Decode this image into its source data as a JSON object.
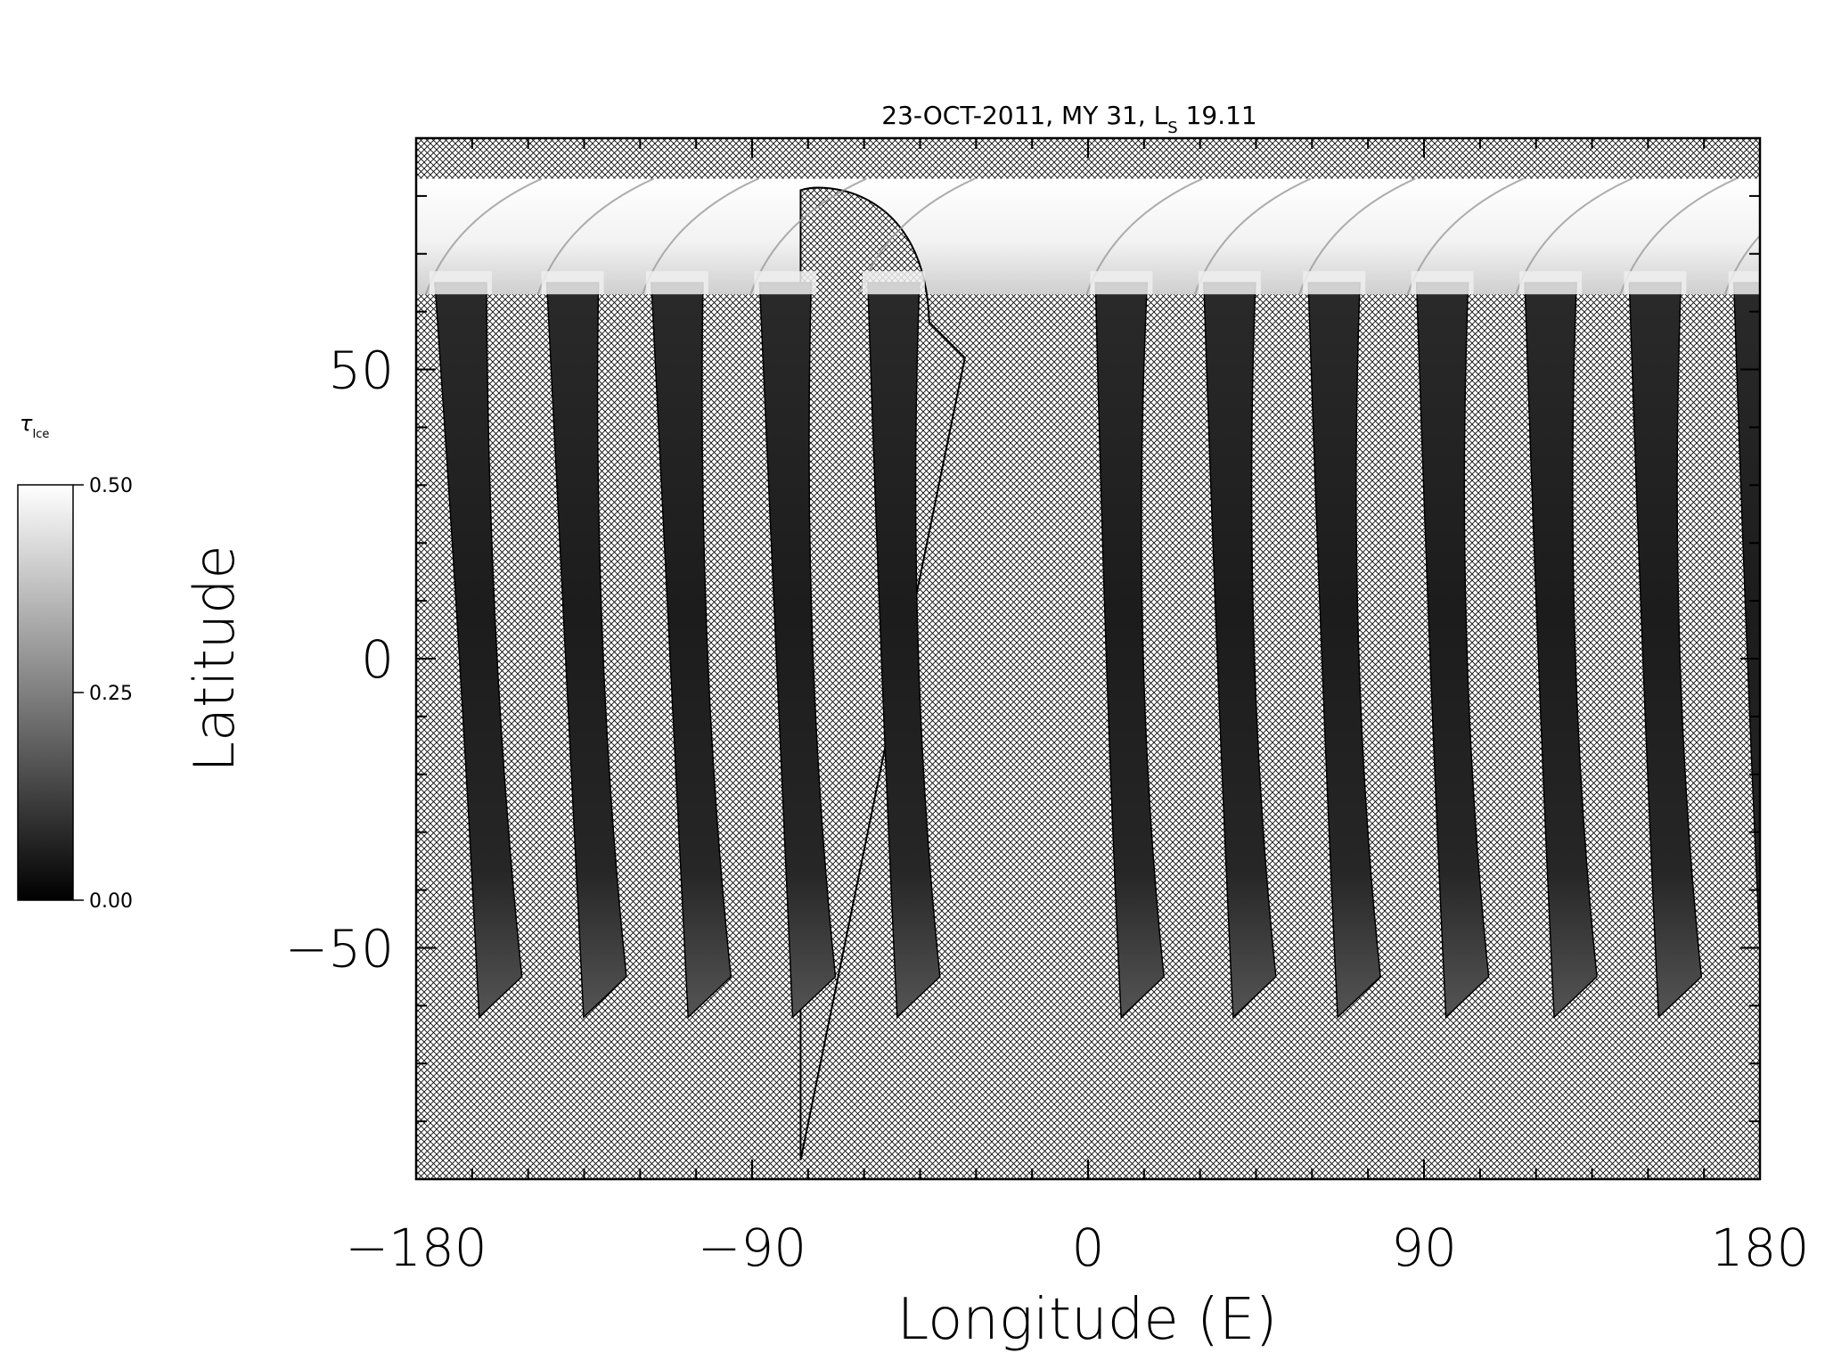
{
  "chart_data": {
    "type": "heatmap",
    "title": "23-OCT-2011, MY 31,  L",
    "title_subscript": "S",
    "title_suffix": " 19.11",
    "xlabel": "Longitude (E)",
    "ylabel": "Latitude",
    "xlim": [
      -180,
      180
    ],
    "ylim": [
      -90,
      90
    ],
    "xticks": [
      -180,
      -90,
      0,
      90,
      180
    ],
    "xtick_labels": [
      "−180",
      "−90",
      "0",
      "90",
      "180"
    ],
    "yticks": [
      -50,
      0,
      50
    ],
    "ytick_labels": [
      "−50",
      "0",
      "50"
    ],
    "no_data_fill": "crosshatch",
    "colorbar": {
      "label": "τ",
      "label_subscript": "Ice",
      "range": [
        0.0,
        0.5
      ],
      "ticks": [
        0.0,
        0.25,
        0.5
      ],
      "tick_labels": [
        "0.00",
        "0.25",
        "0.50"
      ],
      "color_low": "#000000",
      "color_high": "#ffffff"
    },
    "swaths": [
      {
        "lon_top": -175,
        "lon_bottom": -166,
        "lat_bottom": -62
      },
      {
        "lon_top": -145,
        "lon_bottom": -138,
        "lat_bottom": -62
      },
      {
        "lon_top": -117,
        "lon_bottom": -110,
        "lat_bottom": -62
      },
      {
        "lon_top": -88,
        "lon_bottom": -82,
        "lat_bottom": -62
      },
      {
        "lon_top": -59,
        "lon_bottom": -54,
        "lat_bottom": -62
      },
      {
        "lon_top": 2,
        "lon_bottom": 6,
        "lat_bottom": -62
      },
      {
        "lon_top": 31,
        "lon_bottom": 36,
        "lat_bottom": -62
      },
      {
        "lon_top": 59,
        "lon_bottom": 64,
        "lat_bottom": -62
      },
      {
        "lon_top": 88,
        "lon_bottom": 93,
        "lat_bottom": -62
      },
      {
        "lon_top": 117,
        "lon_bottom": 122,
        "lat_bottom": -62
      },
      {
        "lon_top": 145,
        "lon_bottom": 150,
        "lat_bottom": -62
      },
      {
        "lon_top": 173,
        "lon_bottom": 178,
        "lat_bottom": -62
      }
    ],
    "polar_cap_lat": [
      63,
      83
    ]
  }
}
